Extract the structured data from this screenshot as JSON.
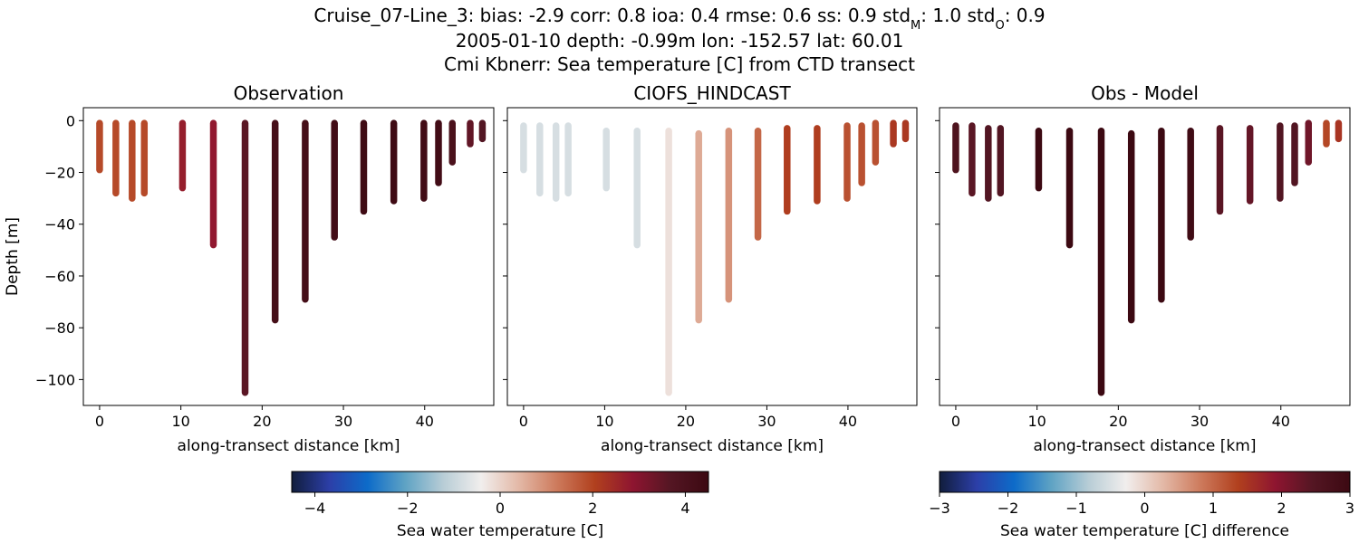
{
  "title_lines": [
    "Cruise_07-Line_3: bias: -2.9  corr: 0.8  ioa: 0.4  rmse: 0.6  ss: 0.9  std",
    "2005-01-10 depth: -0.99m lon: -152.57 lat: 60.01",
    "Cmi Kbnerr: Sea temperature [C] from CTD transect"
  ],
  "title_suffix": {
    "std_m_sub": "M",
    "std_m_val": ": 1.0  std",
    "std_o_sub": "O",
    "std_o_val": ": 0.9"
  },
  "chart_data": [
    {
      "type": "scatter",
      "title": "Observation",
      "xlabel": "along-transect distance [km]",
      "ylabel": "Depth [m]",
      "xlim": [
        -2,
        48.5
      ],
      "ylim": [
        -110,
        5
      ],
      "xticks": [
        0,
        10,
        20,
        30,
        40
      ],
      "yticks": [
        0,
        -20,
        -40,
        -60,
        -80,
        -100
      ],
      "colormap": "balance",
      "clim": [
        -4.5,
        4.5
      ],
      "profiles": [
        {
          "x": 0.0,
          "top": -1,
          "bottom": -19,
          "value": 1.9
        },
        {
          "x": 2.0,
          "top": -1,
          "bottom": -28,
          "value": 1.9
        },
        {
          "x": 4.0,
          "top": -1,
          "bottom": -30,
          "value": 1.9
        },
        {
          "x": 5.5,
          "top": -1,
          "bottom": -28,
          "value": 1.9
        },
        {
          "x": 10.2,
          "top": -1,
          "bottom": -26,
          "value": 2.7
        },
        {
          "x": 14.0,
          "top": -1,
          "bottom": -48,
          "value": 2.8
        },
        {
          "x": 17.9,
          "top": -1,
          "bottom": -105,
          "value": 3.6
        },
        {
          "x": 21.6,
          "top": -1,
          "bottom": -77,
          "value": 4.2
        },
        {
          "x": 25.3,
          "top": -1,
          "bottom": -69,
          "value": 4.2
        },
        {
          "x": 28.9,
          "top": -1,
          "bottom": -45,
          "value": 4.3
        },
        {
          "x": 32.5,
          "top": -1,
          "bottom": -35,
          "value": 4.4
        },
        {
          "x": 36.2,
          "top": -1,
          "bottom": -31,
          "value": 4.4
        },
        {
          "x": 39.9,
          "top": -1,
          "bottom": -30,
          "value": 4.3
        },
        {
          "x": 41.7,
          "top": -1,
          "bottom": -24,
          "value": 4.3
        },
        {
          "x": 43.4,
          "top": -1,
          "bottom": -16,
          "value": 4.0
        },
        {
          "x": 45.6,
          "top": -1,
          "bottom": -9,
          "value": 3.5
        },
        {
          "x": 47.1,
          "top": -1,
          "bottom": -7,
          "value": 3.7
        }
      ]
    },
    {
      "type": "scatter",
      "title": "CIOFS_HINDCAST",
      "xlabel": "along-transect distance [km]",
      "xlim": [
        -2,
        48.5
      ],
      "ylim": [
        -110,
        5
      ],
      "xticks": [
        0,
        10,
        20,
        30,
        40
      ],
      "colormap": "balance",
      "clim": [
        -4.5,
        4.5
      ],
      "profiles": [
        {
          "x": 0.0,
          "top": -2,
          "bottom": -19,
          "value": -0.8
        },
        {
          "x": 2.0,
          "top": -2,
          "bottom": -28,
          "value": -0.8
        },
        {
          "x": 4.0,
          "top": -2,
          "bottom": -30,
          "value": -0.8
        },
        {
          "x": 5.5,
          "top": -2,
          "bottom": -28,
          "value": -0.8
        },
        {
          "x": 10.2,
          "top": -4,
          "bottom": -26,
          "value": -0.8
        },
        {
          "x": 14.0,
          "top": -4,
          "bottom": -48,
          "value": -0.8
        },
        {
          "x": 17.9,
          "top": -4,
          "bottom": -105,
          "value": -0.2
        },
        {
          "x": 21.6,
          "top": -5,
          "bottom": -77,
          "value": 0.6
        },
        {
          "x": 25.3,
          "top": -4,
          "bottom": -69,
          "value": 0.9
        },
        {
          "x": 28.9,
          "top": -4,
          "bottom": -45,
          "value": 1.5
        },
        {
          "x": 32.5,
          "top": -3,
          "bottom": -35,
          "value": 2.1
        },
        {
          "x": 36.2,
          "top": -3,
          "bottom": -31,
          "value": 2.1
        },
        {
          "x": 39.9,
          "top": -2,
          "bottom": -30,
          "value": 1.8
        },
        {
          "x": 41.7,
          "top": -2,
          "bottom": -24,
          "value": 1.8
        },
        {
          "x": 43.4,
          "top": -1,
          "bottom": -16,
          "value": 1.8
        },
        {
          "x": 45.6,
          "top": -1,
          "bottom": -9,
          "value": 2.2
        },
        {
          "x": 47.1,
          "top": -1,
          "bottom": -7,
          "value": 2.2
        }
      ]
    },
    {
      "type": "scatter",
      "title": "Obs - Model",
      "xlabel": "along-transect distance [km]",
      "xlim": [
        -2,
        48.5
      ],
      "ylim": [
        -110,
        5
      ],
      "xticks": [
        0,
        10,
        20,
        30,
        40
      ],
      "colormap": "balance",
      "clim": [
        -3,
        3
      ],
      "profiles": [
        {
          "x": 0.0,
          "top": -2,
          "bottom": -19,
          "value": 2.6
        },
        {
          "x": 2.0,
          "top": -2,
          "bottom": -28,
          "value": 2.4
        },
        {
          "x": 4.0,
          "top": -3,
          "bottom": -30,
          "value": 2.5
        },
        {
          "x": 5.5,
          "top": -3,
          "bottom": -28,
          "value": 2.5
        },
        {
          "x": 10.2,
          "top": -4,
          "bottom": -26,
          "value": 3.0
        },
        {
          "x": 14.0,
          "top": -4,
          "bottom": -48,
          "value": 3.0
        },
        {
          "x": 17.9,
          "top": -4,
          "bottom": -105,
          "value": 3.0
        },
        {
          "x": 21.6,
          "top": -5,
          "bottom": -77,
          "value": 3.0
        },
        {
          "x": 25.3,
          "top": -4,
          "bottom": -69,
          "value": 3.0
        },
        {
          "x": 28.9,
          "top": -4,
          "bottom": -45,
          "value": 2.9
        },
        {
          "x": 32.5,
          "top": -3,
          "bottom": -35,
          "value": 2.4
        },
        {
          "x": 36.2,
          "top": -3,
          "bottom": -31,
          "value": 2.3
        },
        {
          "x": 39.9,
          "top": -2,
          "bottom": -30,
          "value": 2.5
        },
        {
          "x": 41.7,
          "top": -2,
          "bottom": -24,
          "value": 2.5
        },
        {
          "x": 43.4,
          "top": -1,
          "bottom": -16,
          "value": 2.2
        },
        {
          "x": 45.6,
          "top": -1,
          "bottom": -9,
          "value": 1.3
        },
        {
          "x": 47.1,
          "top": -1,
          "bottom": -7,
          "value": 1.5
        }
      ]
    }
  ],
  "colorbars": [
    {
      "label": "Sea water temperature [C]",
      "range": [
        -4.5,
        4.5
      ],
      "ticks": [
        -4,
        -2,
        0,
        2,
        4
      ],
      "tick_labels": [
        "−4",
        "−2",
        "0",
        "2",
        "4"
      ]
    },
    {
      "label": "Sea water temperature [C] difference",
      "range": [
        -3,
        3
      ],
      "ticks": [
        -3,
        -2,
        -1,
        0,
        1,
        2,
        3
      ],
      "tick_labels": [
        "−3",
        "−2",
        "−1",
        "0",
        "1",
        "2",
        "3"
      ]
    }
  ],
  "tick_text": {
    "x": [
      "0",
      "10",
      "20",
      "30",
      "40"
    ],
    "y": [
      "0",
      "−20",
      "−40",
      "−60",
      "−80",
      "−100"
    ]
  },
  "colors": {
    "cmap_stops": [
      "#111d3c",
      "#2c3fa8",
      "#0d6bc9",
      "#5fa3c4",
      "#b8cdd6",
      "#f1eeed",
      "#e3b8a6",
      "#cd7a5c",
      "#b1401e",
      "#8e1530",
      "#541623",
      "#3c0912"
    ]
  }
}
